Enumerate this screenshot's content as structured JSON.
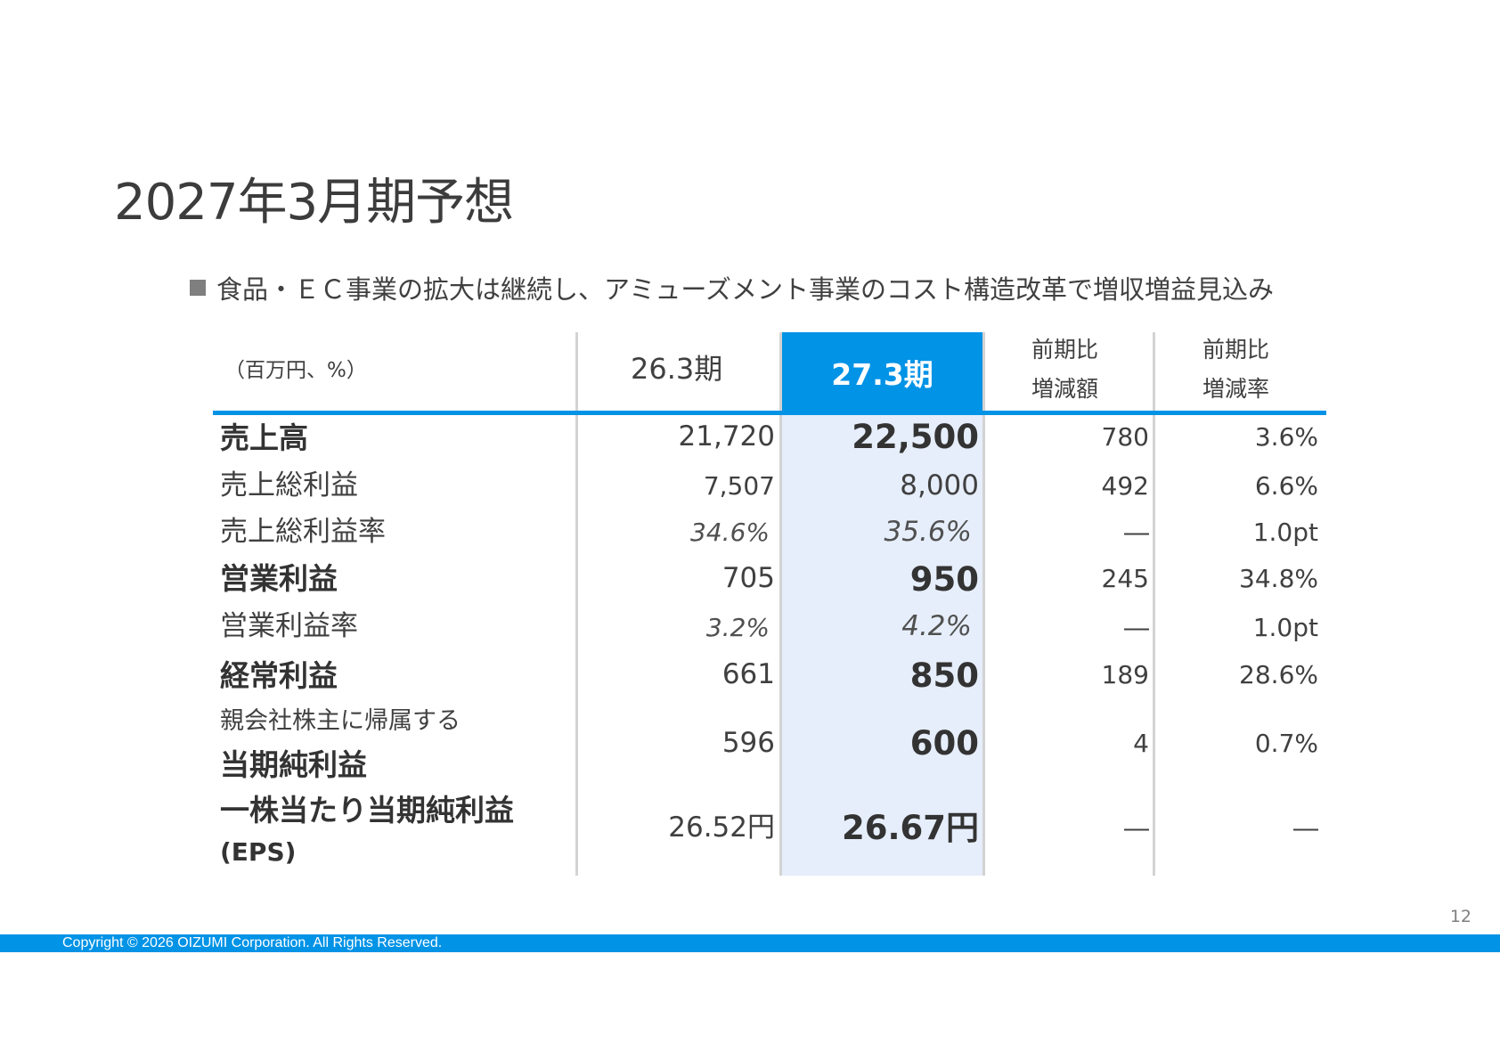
{
  "title": "2027年3月期予想",
  "bullet": "食品・ＥＣ事業の拡大は継続し、アミューズメント事業のコスト構造改革で増収増益見込み",
  "table": {
    "unit_label": "（百万円、%）",
    "headers": {
      "prev": "26.3期",
      "current": "27.3期",
      "diff_line1": "前期比",
      "diff_line2": "増減額",
      "rate_line1": "前期比",
      "rate_line2": "増減率"
    },
    "rows": [
      {
        "label": "売上高",
        "prev": "21,720",
        "current": "22,500",
        "diff": "780",
        "rate": "3.6%"
      },
      {
        "label": "売上総利益",
        "prev": "7,507",
        "current": "8,000",
        "diff": "492",
        "rate": "6.6%"
      },
      {
        "label": "売上総利益率",
        "prev": "34.6%",
        "current": "35.6%",
        "diff": "―",
        "rate": "1.0pt"
      },
      {
        "label": "営業利益",
        "prev": "705",
        "current": "950",
        "diff": "245",
        "rate": "34.8%"
      },
      {
        "label": "営業利益率",
        "prev": "3.2%",
        "current": "4.2%",
        "diff": "―",
        "rate": "1.0pt"
      },
      {
        "label": "経常利益",
        "prev": "661",
        "current": "850",
        "diff": "189",
        "rate": "28.6%"
      },
      {
        "label_line1": "親会社株主に帰属する",
        "label_line2": "当期純利益",
        "prev": "596",
        "current": "600",
        "diff": "4",
        "rate": "0.7%"
      },
      {
        "label_line1": "一株当たり当期純利益",
        "label_line2": "(EPS)",
        "prev": "26.52円",
        "current": "26.67円",
        "diff": "―",
        "rate": "―"
      }
    ]
  },
  "page_number": "12",
  "footer": "Copyright © 2026 OIZUMI Corporation. All Rights Reserved.",
  "colors": {
    "accent": "#0093e6",
    "highlight": "#e6eefb",
    "text": "#404040"
  }
}
